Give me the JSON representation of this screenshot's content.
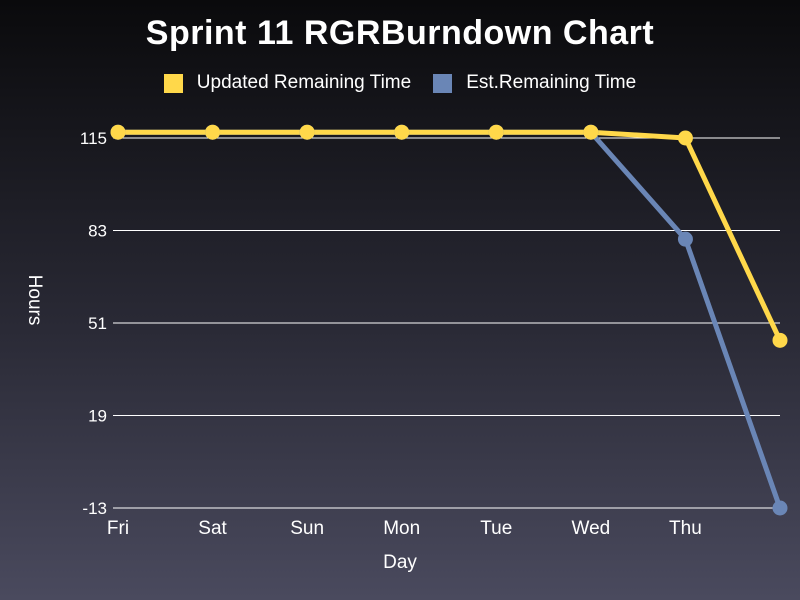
{
  "chart_data": {
    "type": "line",
    "title": "Sprint 11 RGRBurndown Chart",
    "xlabel": "Day",
    "ylabel": "Hours",
    "categories": [
      "Fri",
      "Sat",
      "Sun",
      "Mon",
      "Tue",
      "Wed",
      "Thu",
      ""
    ],
    "y_ticks": [
      -13,
      19,
      51,
      83,
      115
    ],
    "ylim": [
      -13,
      115
    ],
    "grid": "horizontal",
    "legend_position": "top",
    "series": [
      {
        "name": "Updated Remaining Time",
        "color": "#ffd84a",
        "values": [
          117,
          117,
          117,
          117,
          117,
          117,
          115,
          45
        ]
      },
      {
        "name": "Est.Remaining Time",
        "color": "#6a86b6",
        "values": [
          117,
          117,
          117,
          117,
          117,
          117,
          80,
          -13
        ]
      }
    ]
  }
}
